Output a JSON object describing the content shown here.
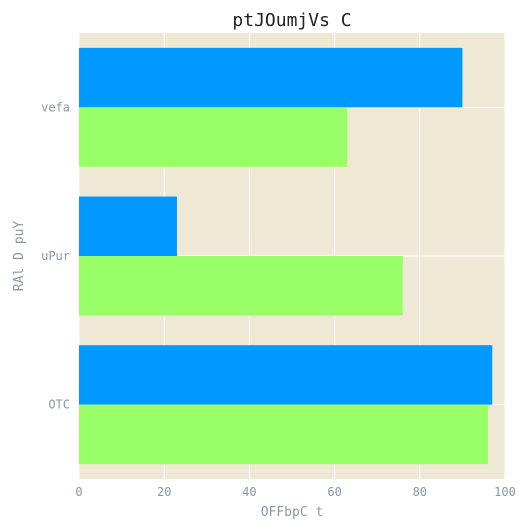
{
  "chart_data": {
    "type": "bar",
    "orientation": "horizontal",
    "title": "ptJOumjVs C",
    "xlabel": "OFFbpC t",
    "ylabel": "RAl D puY",
    "categories": [
      "vefa",
      "uPur",
      "OTC"
    ],
    "xlim": [
      0,
      100
    ],
    "xticks": [
      "0",
      "20",
      "40",
      "60",
      "80",
      "100"
    ],
    "grid": true,
    "legend": "none",
    "series": [
      {
        "color": "#0099ff",
        "values": [
          90,
          23,
          97
        ]
      },
      {
        "color": "#99ff66",
        "values": [
          63,
          76,
          96
        ]
      }
    ],
    "background_color": "#eee8d5",
    "grid_color": "#ffffff"
  }
}
